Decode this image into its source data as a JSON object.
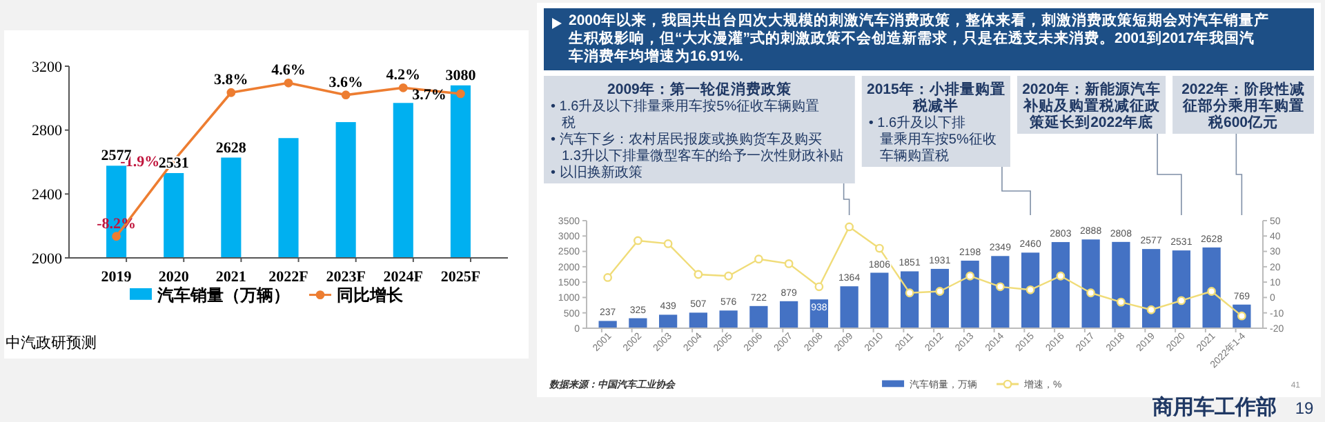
{
  "chart_data": [
    {
      "type": "bar",
      "categories": [
        "2019",
        "2020",
        "2021",
        "2022F",
        "2023F",
        "2024F",
        "2025F"
      ],
      "ylim": [
        2000,
        3200
      ],
      "yticks": [
        2000,
        2400,
        2800,
        3200
      ],
      "y2lim": [
        -10,
        6
      ],
      "legend": "bottom",
      "marker": "circle",
      "series": [
        {
          "name": "汽车销量（万辆）",
          "color": "#00b0f0",
          "values": [
            2577,
            2531,
            2628,
            2750,
            2850,
            2970,
            3080
          ],
          "value_labels": [
            "2577",
            "2531",
            "2628",
            null,
            null,
            null,
            "3080"
          ]
        },
        {
          "name": "同比增长",
          "type": "line",
          "axis": "y2",
          "color": "#ed7d31",
          "values": [
            -8.2,
            -1.9,
            3.8,
            4.6,
            3.6,
            4.2,
            3.7
          ],
          "value_labels": [
            "-8.2%",
            "-1.9%",
            "3.8%",
            "4.6%",
            "3.6%",
            "4.2%",
            "3.7%"
          ]
        }
      ],
      "annotations": [
        "中汽政研预测"
      ]
    },
    {
      "type": "bar",
      "title": "2000年以来，我国共出台四次大规模的刺激汽车消费政策，整体来看，刺激消费政策短期会对汽车销量产生积极影响，但“大水漫灌”式的刺激政策不会创造新需求，只是在透支未来消费。2001到2017年我国汽车消费年均增速为16.91%.",
      "categories": [
        "2001",
        "2002",
        "2003",
        "2004",
        "2005",
        "2006",
        "2007",
        "2008",
        "2009",
        "2010",
        "2011",
        "2012",
        "2013",
        "2014",
        "2015",
        "2016",
        "2017",
        "2018",
        "2019",
        "2020",
        "2021",
        "2022年1-4"
      ],
      "ylim": [
        0,
        3500
      ],
      "yticks": [
        0,
        500,
        1000,
        1500,
        2000,
        2500,
        3000,
        3500
      ],
      "y2lim": [
        -20,
        50
      ],
      "y2ticks": [
        -20,
        -10,
        0,
        10,
        20,
        30,
        40,
        50
      ],
      "legend": "bottom",
      "marker": "circle",
      "series": [
        {
          "name": "汽车销量，万辆",
          "color": "#4472c4",
          "values": [
            237,
            325,
            439,
            507,
            576,
            722,
            879,
            938,
            1364,
            1806,
            1851,
            1931,
            2198,
            2349,
            2460,
            2803,
            2888,
            2808,
            2577,
            2531,
            2628,
            769
          ],
          "value_labels": [
            "237",
            "325",
            "439",
            "507",
            "576",
            "722",
            "879",
            "938",
            "1364",
            "1806",
            "1851",
            "1931",
            "2198",
            "2349",
            "2460",
            "2803",
            "2888",
            "2808",
            "2577",
            "2531",
            "2628",
            "769"
          ]
        },
        {
          "name": "增速，%",
          "type": "line",
          "axis": "y2",
          "color": "#f0dc78",
          "values": [
            13,
            37,
            35,
            15,
            14,
            25,
            22,
            7,
            46,
            32,
            3,
            4,
            14,
            7,
            5,
            14,
            3,
            -3,
            -8,
            -2,
            4,
            -12
          ]
        }
      ],
      "annotations": [
        "2009年：第一轮促消费政策\n• 1.6升及以下排量乘用车按5%征收车辆购置税\n• 汽车下乡：农村居民报废或换购货车及购买1.3升以下排量微型客车的给予一次性财政补贴\n• 以旧换新政策",
        "2015年：小排量购置税减半\n• 1.6升及以下排量乘用车按5%征收车辆购置税",
        "2020年：新能源汽车补贴及购置税减征政策延长到2022年底",
        "2022年：阶段性减征部分乘用车购置税600亿元",
        "数据来源：中国汽车工业协会",
        "41",
        "商用车工作部",
        "19"
      ]
    }
  ]
}
